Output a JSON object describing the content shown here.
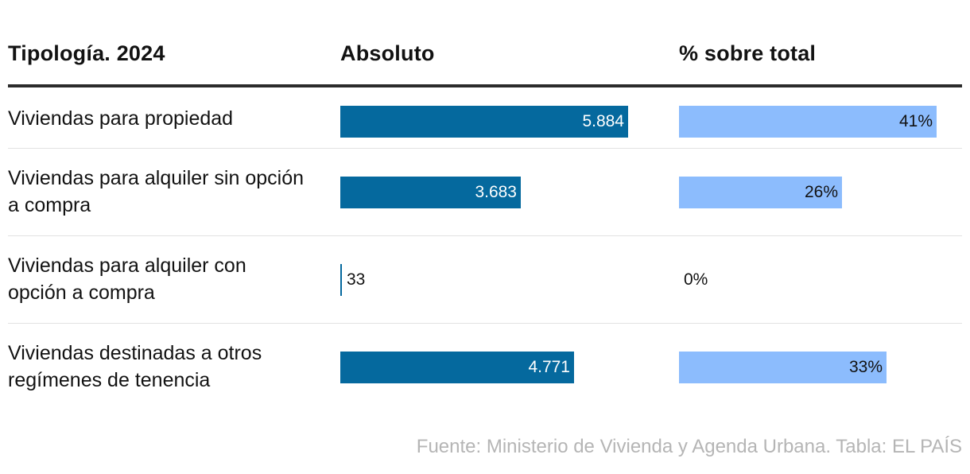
{
  "chart_data": {
    "type": "table",
    "columns": [
      "Tipología. 2024",
      "Absoluto",
      "% sobre total"
    ],
    "rows": [
      {
        "label": "Viviendas para propiedad",
        "absoluto": 5884,
        "absoluto_label": "5.884",
        "pct": 41,
        "pct_label": "41%"
      },
      {
        "label": "Viviendas para alquiler sin opción a compra",
        "absoluto": 3683,
        "absoluto_label": "3.683",
        "pct": 26,
        "pct_label": "26%"
      },
      {
        "label": "Viviendas para alquiler con opción a compra",
        "absoluto": 33,
        "absoluto_label": "33",
        "pct": 0,
        "pct_label": "0%"
      },
      {
        "label": "Viviendas destinadas a otros regímenes de tenencia",
        "absoluto": 4771,
        "absoluto_label": "4.771",
        "pct": 33,
        "pct_label": "33%"
      }
    ],
    "absoluto_range": [
      0,
      5884
    ],
    "pct_range": [
      0,
      41
    ],
    "colors": {
      "absoluto_bar": "#05699e",
      "pct_bar": "#8cbcfd"
    }
  },
  "source": "Fuente: Ministerio de Vivienda y Agenda Urbana. Tabla: EL PAÍS"
}
